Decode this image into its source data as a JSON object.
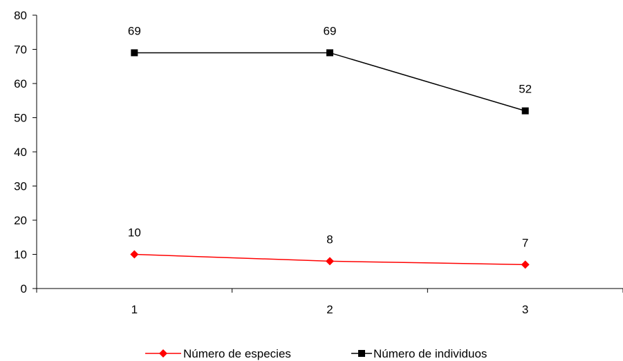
{
  "chart_data": {
    "type": "line",
    "categories": [
      "1",
      "2",
      "3"
    ],
    "series": [
      {
        "name": "Número de especies",
        "values": [
          10,
          8,
          7
        ],
        "color": "#ff0000",
        "marker": "diamond"
      },
      {
        "name": "Número de individuos",
        "values": [
          69,
          69,
          52
        ],
        "color": "#000000",
        "marker": "square"
      }
    ],
    "ylim": [
      0,
      80
    ],
    "yticks": [
      0,
      10,
      20,
      30,
      40,
      50,
      60,
      70,
      80
    ],
    "grid": false,
    "legend_position": "bottom",
    "data_labels": true
  }
}
